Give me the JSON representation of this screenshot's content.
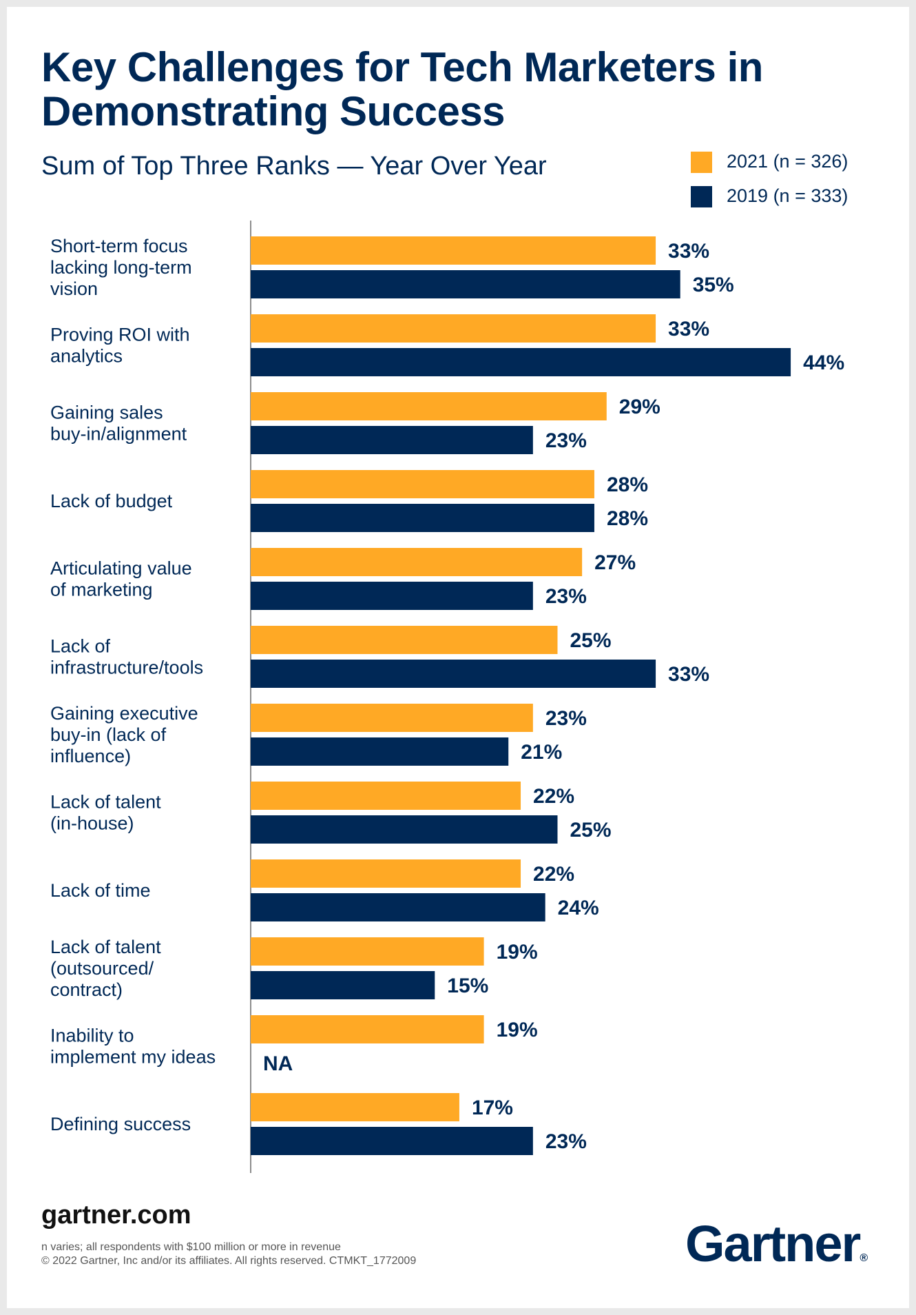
{
  "title": "Key Challenges for Tech Marketers in Demonstrating Success",
  "subtitle": "Sum of Top Three Ranks — Year Over Year",
  "legend": [
    {
      "label": "2021 (n = 326)",
      "color": "#FFA925"
    },
    {
      "label": "2019 (n = 333)",
      "color": "#002856"
    }
  ],
  "chart_data": {
    "type": "bar",
    "orientation": "horizontal",
    "title": "Key Challenges for Tech Marketers in Demonstrating Success",
    "subtitle": "Sum of Top Three Ranks — Year Over Year",
    "xlabel": "",
    "ylabel": "",
    "unit": "%",
    "xlim": [
      0,
      50
    ],
    "categories": [
      [
        "Short-term focus",
        "lacking long-term",
        "vision"
      ],
      [
        "Proving ROI with",
        "analytics"
      ],
      [
        "Gaining sales",
        "buy-in/alignment"
      ],
      [
        "Lack of budget"
      ],
      [
        "Articulating value",
        "of marketing"
      ],
      [
        "Lack of",
        "infrastructure/tools"
      ],
      [
        "Gaining executive",
        "buy-in (lack of",
        "influence)"
      ],
      [
        "Lack of talent",
        "(in-house)"
      ],
      [
        "Lack of time"
      ],
      [
        "Lack of talent",
        "(outsourced/",
        "contract)"
      ],
      [
        "Inability to",
        "implement my ideas"
      ],
      [
        "Defining success"
      ]
    ],
    "series": [
      {
        "name": "2021 (n = 326)",
        "color": "#FFA925",
        "values": [
          33,
          33,
          29,
          28,
          27,
          25,
          23,
          22,
          22,
          19,
          19,
          17
        ],
        "labels": [
          "33%",
          "33%",
          "29%",
          "28%",
          "27%",
          "25%",
          "23%",
          "22%",
          "22%",
          "19%",
          "19%",
          "17%"
        ]
      },
      {
        "name": "2019 (n = 333)",
        "color": "#002856",
        "values": [
          35,
          44,
          23,
          28,
          23,
          33,
          21,
          25,
          24,
          15,
          null,
          23
        ],
        "labels": [
          "35%",
          "44%",
          "23%",
          "28%",
          "23%",
          "33%",
          "21%",
          "25%",
          "24%",
          "15%",
          "NA",
          "23%"
        ]
      }
    ],
    "grid": false,
    "legend_position": "top-right"
  },
  "footer": {
    "url": "gartner.com",
    "note": "n varies; all respondents with $100 million or more in revenue",
    "copyright": "© 2022 Gartner, Inc and/or its affiliates. All rights reserved. CTMKT_1772009"
  },
  "brand": {
    "name": "Gartner",
    "mark": "®"
  }
}
